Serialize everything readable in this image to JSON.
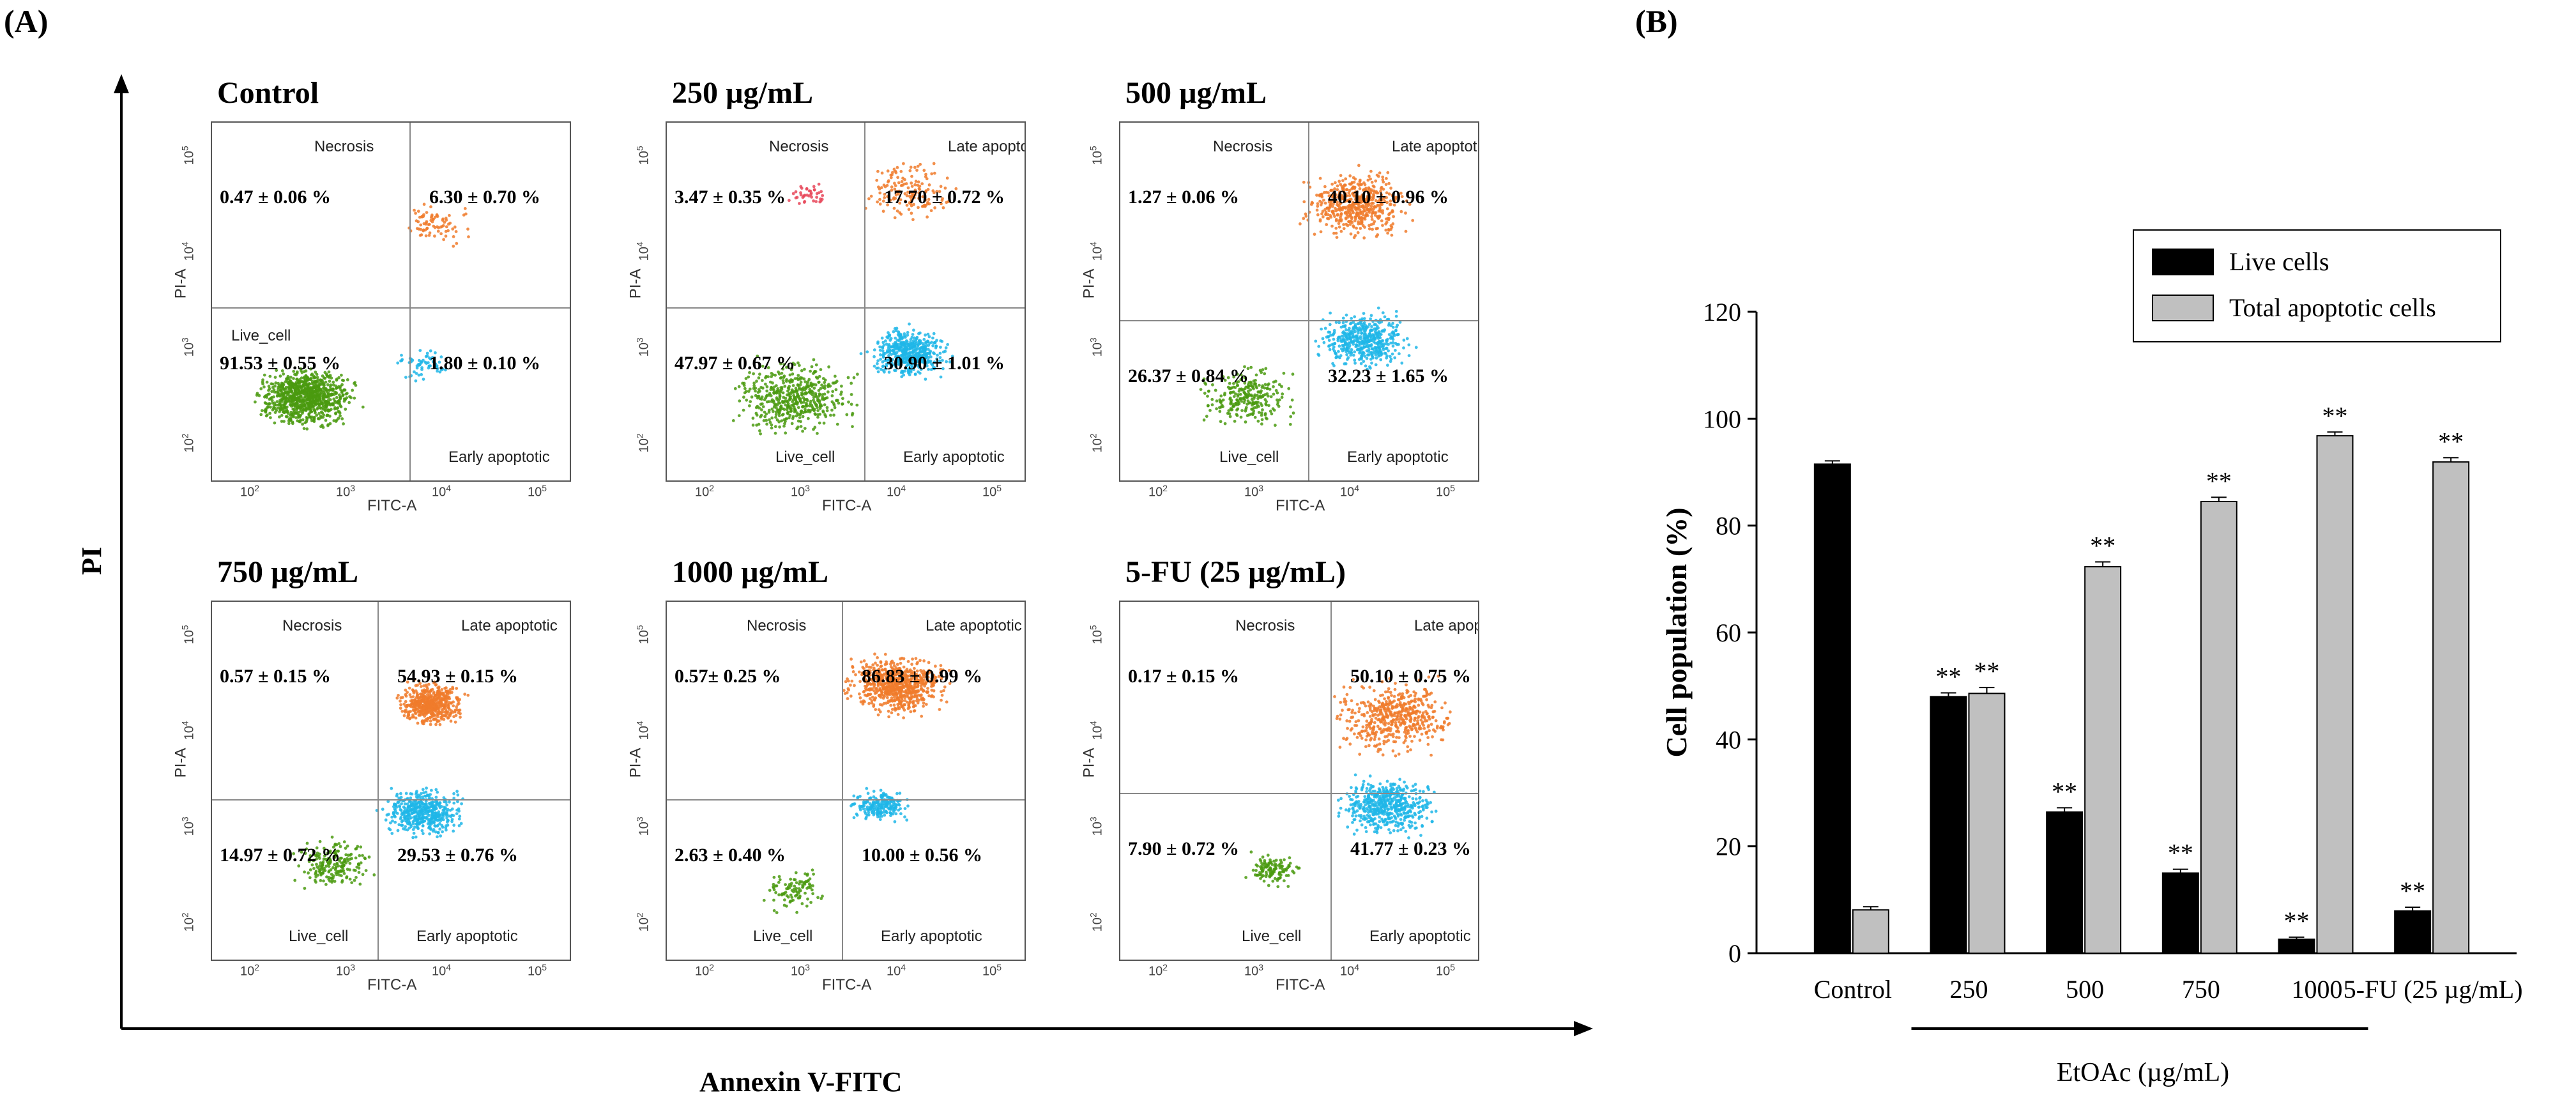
{
  "panel_a": {
    "label": "(A)",
    "y_axis_title": "PI",
    "x_axis_title": "Annexin V-FITC",
    "x_channel": "FITC-A",
    "y_channel": "PI-A",
    "tick_labels": [
      "10",
      "2",
      "10",
      "3",
      "10",
      "4",
      "10",
      "5"
    ],
    "plots": [
      {
        "title": "Control",
        "necrosis_label": "Necrosis",
        "late_label": "",
        "live_label": "Live_cell",
        "early_label": "Early apoptotic",
        "necrosis": "0.47 ± 0.06 %",
        "late": "6.30 ± 0.70 %",
        "live": "91.53 ± 0.55 %",
        "early": "1.80 ± 0.10 %"
      },
      {
        "title": "250 µg/mL",
        "necrosis_label": "Necrosis",
        "late_label": "Late apoptotic",
        "live_label": "Live_cell",
        "early_label": "Early apoptotic",
        "necrosis": "3.47 ± 0.35 %",
        "late": "17.70 ± 0.72 %",
        "live": "47.97 ± 0.67 %",
        "early": "30.90 ± 1.01 %"
      },
      {
        "title": "500 µg/mL",
        "necrosis_label": "Necrosis",
        "late_label": "Late apoptotic",
        "live_label": "Live_cell",
        "early_label": "Early apoptotic",
        "necrosis": "1.27 ± 0.06 %",
        "late": "40.10 ± 0.96 %",
        "live": "26.37 ± 0.84 %",
        "early": "32.23 ± 1.65 %"
      },
      {
        "title": "750 µg/mL",
        "necrosis_label": "Necrosis",
        "late_label": "Late apoptotic",
        "live_label": "Live_cell",
        "early_label": "Early apoptotic",
        "necrosis": "0.57 ± 0.15 %",
        "late": "54.93 ± 0.15 %",
        "live": "14.97 ± 0.72 %",
        "early": "29.53 ± 0.76 %"
      },
      {
        "title": "1000 µg/mL",
        "necrosis_label": "Necrosis",
        "late_label": "Late apoptotic",
        "live_label": "Live_cell",
        "early_label": "Early apoptotic",
        "necrosis": "0.57± 0.25 %",
        "late": "86.83 ± 0.99 %",
        "live": "2.63 ± 0.40 %",
        "early": "10.00 ± 0.56 %"
      },
      {
        "title": "5-FU (25 µg/mL)",
        "necrosis_label": "Necrosis",
        "late_label": "Late apoptotic",
        "live_label": "Live_cell",
        "early_label": "Early apoptotic",
        "necrosis": "0.17 ± 0.15 %",
        "late": "50.10 ± 0.75 %",
        "live": "7.90 ± 0.72 %",
        "early": "41.77 ± 0.23 %"
      }
    ]
  },
  "panel_b": {
    "label": "(B)",
    "group_label": "EtOAc (µg/mL)",
    "significance": "**"
  },
  "chart_data": {
    "type": "bar",
    "title": "",
    "xlabel": "",
    "ylabel": "Cell population (%)",
    "ylim": [
      0,
      120
    ],
    "yticks": [
      0,
      20,
      40,
      60,
      80,
      100,
      120
    ],
    "categories": [
      "Control",
      "250",
      "500",
      "750",
      "1000",
      "5-FU (25 µg/mL)"
    ],
    "series": [
      {
        "name": "Live cells",
        "color": "#000000",
        "values": [
          91.5,
          48.0,
          26.4,
          15.0,
          2.6,
          7.9
        ],
        "errors": [
          0.6,
          0.7,
          0.8,
          0.7,
          0.4,
          0.7
        ],
        "significant": [
          false,
          true,
          true,
          true,
          true,
          true
        ]
      },
      {
        "name": "Total apoptotic cells",
        "color": "#c0c0c0",
        "values": [
          8.1,
          48.6,
          72.3,
          84.5,
          96.8,
          91.9
        ],
        "errors": [
          0.6,
          1.1,
          0.9,
          0.8,
          0.7,
          0.8
        ],
        "significant": [
          false,
          true,
          true,
          true,
          true,
          true
        ]
      }
    ],
    "legend_position": "top-right"
  }
}
